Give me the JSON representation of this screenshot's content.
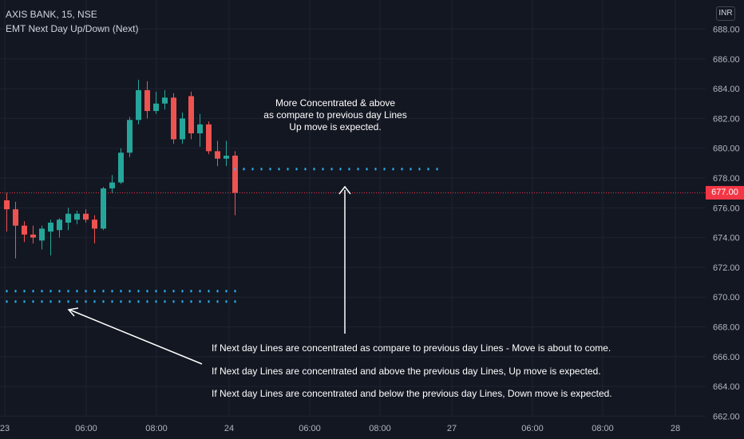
{
  "header": {
    "symbol_line": "AXIS BANK, 15, NSE",
    "indicator_line": "EMT Next Day Up/Down (Next)"
  },
  "currency_button": "INR",
  "last_price_label": "677.00",
  "colors": {
    "background": "#131722",
    "up": "#26a69a",
    "down": "#ef5350",
    "dots": "#29b6f6",
    "last_price": "#f23645",
    "annotation": "#ffffff"
  },
  "annotations": {
    "top_note": [
      "More Concentrated & above",
      "as compare to previous day Lines",
      "Up move is expected."
    ],
    "bottom_notes": [
      "If Next day Lines are concentrated as compare to previous day Lines - Move is about to come.",
      "If Next day Lines are concentrated and above the previous day Lines, Up move is expected.",
      "If Next day Lines are concentrated and below the previous day Lines, Down move is expected."
    ]
  },
  "chart_data": {
    "type": "candlestick",
    "price_axis_labels": [
      "688.00",
      "686.00",
      "684.00",
      "682.00",
      "680.00",
      "678.00",
      "676.00",
      "674.00",
      "672.00",
      "670.00",
      "668.00",
      "666.00",
      "664.00",
      "662.00"
    ],
    "time_axis_labels": [
      "23",
      "06:00",
      "08:00",
      "24",
      "06:00",
      "08:00",
      "27",
      "06:00",
      "08:00",
      "28"
    ],
    "ylim": [
      662,
      689
    ],
    "last_price": 677.0,
    "candles": [
      {
        "o": 676.5,
        "h": 677.0,
        "l": 674.4,
        "c": 675.9
      },
      {
        "o": 675.9,
        "h": 676.4,
        "l": 672.6,
        "c": 674.8
      },
      {
        "o": 674.8,
        "h": 675.1,
        "l": 673.7,
        "c": 674.2
      },
      {
        "o": 674.2,
        "h": 674.8,
        "l": 673.6,
        "c": 674.0
      },
      {
        "o": 673.8,
        "h": 674.8,
        "l": 673.2,
        "c": 674.6
      },
      {
        "o": 674.4,
        "h": 675.2,
        "l": 672.8,
        "c": 675.0
      },
      {
        "o": 674.5,
        "h": 675.3,
        "l": 674.0,
        "c": 675.2
      },
      {
        "o": 675.0,
        "h": 676.0,
        "l": 674.5,
        "c": 675.6
      },
      {
        "o": 675.2,
        "h": 675.8,
        "l": 674.9,
        "c": 675.6
      },
      {
        "o": 675.6,
        "h": 675.9,
        "l": 675.0,
        "c": 675.2
      },
      {
        "o": 675.2,
        "h": 675.5,
        "l": 673.6,
        "c": 674.6
      },
      {
        "o": 674.6,
        "h": 677.4,
        "l": 674.5,
        "c": 677.3
      },
      {
        "o": 677.3,
        "h": 678.2,
        "l": 677.0,
        "c": 677.7
      },
      {
        "o": 677.7,
        "h": 680.0,
        "l": 677.6,
        "c": 679.7
      },
      {
        "o": 679.7,
        "h": 682.1,
        "l": 679.4,
        "c": 681.9
      },
      {
        "o": 681.9,
        "h": 684.6,
        "l": 681.6,
        "c": 683.9
      },
      {
        "o": 683.9,
        "h": 684.5,
        "l": 682.0,
        "c": 682.5
      },
      {
        "o": 682.5,
        "h": 683.8,
        "l": 682.3,
        "c": 683.0
      },
      {
        "o": 683.0,
        "h": 683.9,
        "l": 682.6,
        "c": 683.4
      },
      {
        "o": 683.4,
        "h": 683.7,
        "l": 680.3,
        "c": 680.6
      },
      {
        "o": 680.6,
        "h": 682.4,
        "l": 680.3,
        "c": 682.0
      },
      {
        "o": 683.5,
        "h": 683.8,
        "l": 680.6,
        "c": 681.0
      },
      {
        "o": 681.0,
        "h": 682.3,
        "l": 680.1,
        "c": 681.6
      },
      {
        "o": 681.6,
        "h": 681.8,
        "l": 679.6,
        "c": 679.8
      },
      {
        "o": 679.8,
        "h": 680.5,
        "l": 678.8,
        "c": 679.3
      },
      {
        "o": 679.3,
        "h": 680.5,
        "l": 678.8,
        "c": 679.5
      },
      {
        "o": 679.5,
        "h": 679.8,
        "l": 675.5,
        "c": 677.0
      }
    ],
    "dotted_levels": [
      {
        "price": 678.6,
        "from_candle": 26,
        "to_time": "27"
      },
      {
        "price": 670.4,
        "from_candle": 0,
        "to_candle": 26
      },
      {
        "price": 669.7,
        "from_candle": 0,
        "to_candle": 26
      }
    ]
  }
}
